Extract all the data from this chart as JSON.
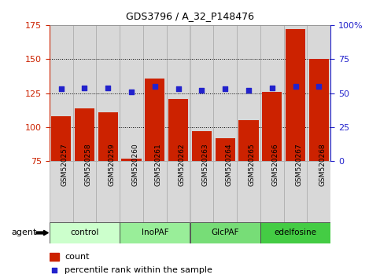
{
  "title": "GDS3796 / A_32_P148476",
  "samples": [
    "GSM520257",
    "GSM520258",
    "GSM520259",
    "GSM520260",
    "GSM520261",
    "GSM520262",
    "GSM520263",
    "GSM520264",
    "GSM520265",
    "GSM520266",
    "GSM520267",
    "GSM520268"
  ],
  "counts": [
    108,
    114,
    111,
    77,
    136,
    121,
    97,
    92,
    105,
    126,
    172,
    150
  ],
  "percentiles": [
    53,
    54,
    54,
    51,
    55,
    53,
    52,
    53,
    52,
    54,
    55,
    55
  ],
  "groups": [
    {
      "label": "control",
      "start": 0,
      "end": 3,
      "color": "#ccffcc"
    },
    {
      "label": "InoPAF",
      "start": 3,
      "end": 6,
      "color": "#99ee99"
    },
    {
      "label": "GlcPAF",
      "start": 6,
      "end": 9,
      "color": "#77dd77"
    },
    {
      "label": "edelfosine",
      "start": 9,
      "end": 12,
      "color": "#44cc44"
    }
  ],
  "bar_color": "#cc2200",
  "dot_color": "#2222cc",
  "ylim_left": [
    75,
    175
  ],
  "ylim_right": [
    0,
    100
  ],
  "yticks_left": [
    75,
    100,
    125,
    150,
    175
  ],
  "yticks_right": [
    0,
    25,
    50,
    75,
    100
  ],
  "col_bg_color": "#d8d8d8",
  "col_edge_color": "#aaaaaa",
  "legend_count": "count",
  "legend_pct": "percentile rank within the sample"
}
